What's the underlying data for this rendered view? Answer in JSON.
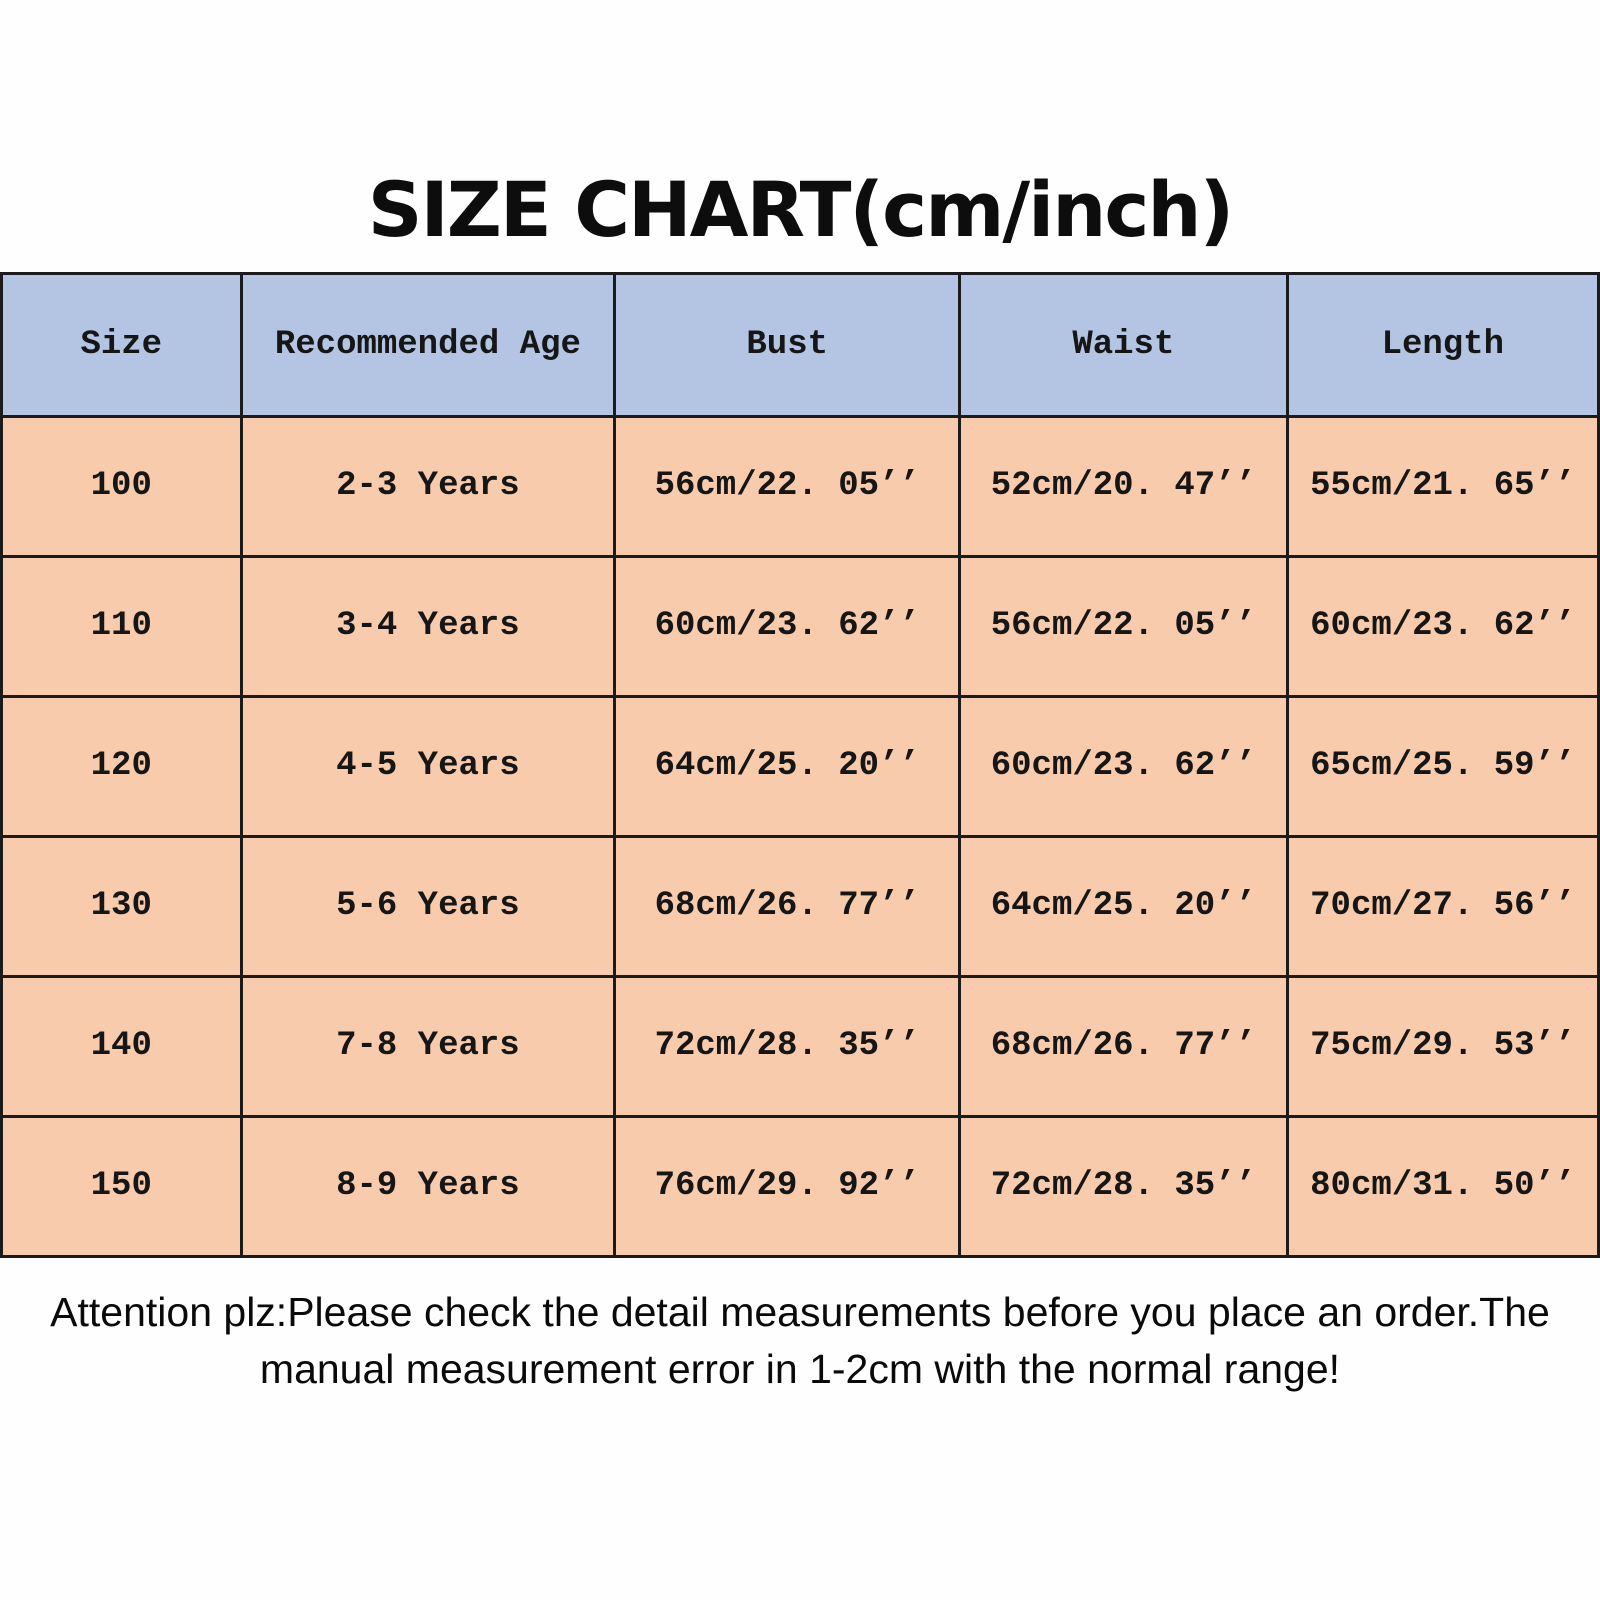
{
  "chart_data": {
    "type": "table",
    "title": "SIZE CHART(cm/inch)",
    "units": "cm/inch",
    "columns": [
      "Size",
      "Recommended Age",
      "Bust",
      "Waist",
      "Length"
    ],
    "rows": [
      [
        "100",
        "2-3 Years",
        "56cm/22. 05’’",
        "52cm/20. 47’’",
        "55cm/21. 65’’"
      ],
      [
        "110",
        "3-4 Years",
        "60cm/23. 62’’",
        "56cm/22. 05’’",
        "60cm/23. 62’’"
      ],
      [
        "120",
        "4-5 Years",
        "64cm/25. 20’’",
        "60cm/23. 62’’",
        "65cm/25. 59’’"
      ],
      [
        "130",
        "5-6 Years",
        "68cm/26. 77’’",
        "64cm/25. 20’’",
        "70cm/27. 56’’"
      ],
      [
        "140",
        "7-8 Years",
        "72cm/28. 35’’",
        "68cm/26. 77’’",
        "75cm/29. 53’’"
      ],
      [
        "150",
        "8-9 Years",
        "76cm/29. 92’’",
        "72cm/28. 35’’",
        "80cm/31. 50’’"
      ]
    ]
  },
  "note": {
    "line1": "Attention plz:Please check the detail measurements before you place an order.The",
    "line2": "manual measurement error in 1-2cm with the normal range!"
  },
  "colors": {
    "header_bg": "#b3c5e3",
    "row_bg": "#f7cbac",
    "border": "#1b1b1b",
    "title_text": "#0d0d0d",
    "background": "#fefefe"
  }
}
